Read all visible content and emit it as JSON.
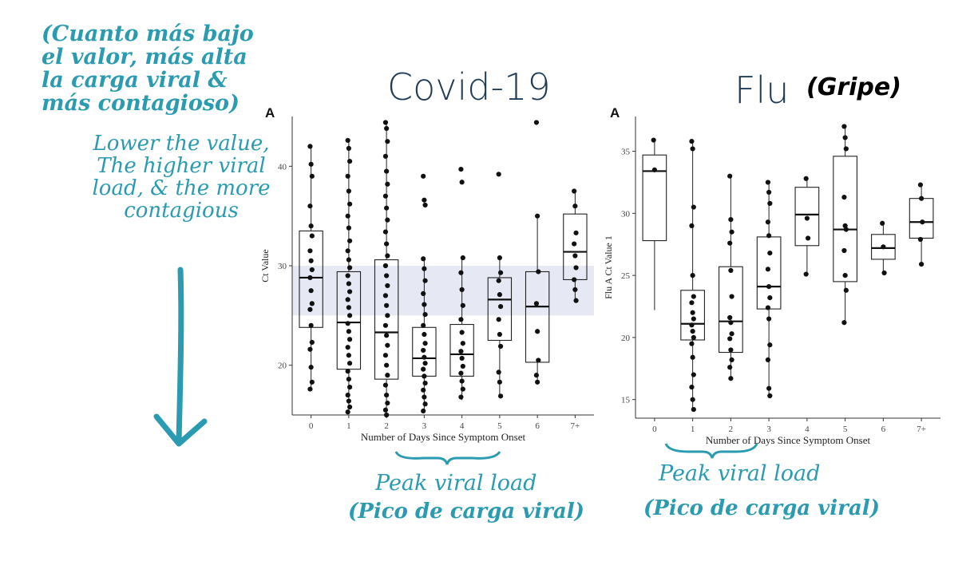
{
  "annotations": {
    "spanish_note": "(Cuanto más bajo el valor, más alta la carga viral & más contagioso)",
    "english_note": "Lower the value, The higher viral load, & the more contagious",
    "covid_title": "Covid-19",
    "flu_title": "Flu",
    "flu_title_es": "(Gripe)",
    "peak_label_en": "Peak viral load",
    "peak_label_es": "(Pico de carga viral)",
    "arrow_icon": "down-arrow-icon",
    "colors": {
      "teal": "#2a9bb0",
      "navy": "#1f3b57",
      "band": "#e6e8f4"
    }
  },
  "chart_data": [
    {
      "type": "box",
      "panel_letter": "A",
      "xlabel": "Number of Days Since Symptom Onset",
      "ylabel": "Ct Value",
      "categories": [
        "0",
        "1",
        "2",
        "3",
        "4",
        "5",
        "6",
        "7+"
      ],
      "yticks": [
        20,
        30,
        40
      ],
      "ylim": [
        15,
        45
      ],
      "highlight_band": [
        25,
        30
      ],
      "boxes": [
        {
          "q1": 23.8,
          "median": 28.8,
          "q3": 33.5,
          "min": 17.5,
          "max": 42.0
        },
        {
          "q1": 19.6,
          "median": 24.3,
          "q3": 29.4,
          "min": 15.3,
          "max": 42.6
        },
        {
          "q1": 18.6,
          "median": 23.3,
          "q3": 30.6,
          "min": 15.0,
          "max": 44.4
        },
        {
          "q1": 18.9,
          "median": 20.7,
          "q3": 23.8,
          "min": 15.4,
          "max": 30.7
        },
        {
          "q1": 18.9,
          "median": 21.1,
          "q3": 24.1,
          "min": 16.5,
          "max": 30.8
        },
        {
          "q1": 22.5,
          "median": 26.6,
          "q3": 28.8,
          "min": 16.9,
          "max": 30.8
        },
        {
          "q1": 20.3,
          "median": 25.9,
          "q3": 29.4,
          "min": 18.3,
          "max": 35.0
        },
        {
          "q1": 28.6,
          "median": 31.4,
          "q3": 35.2,
          "min": 26.5,
          "max": 37.5
        }
      ],
      "points": [
        [
          42.0,
          40.2,
          39.0,
          36.0,
          34.0,
          33.0,
          31.5,
          30.5,
          29.6,
          28.8,
          27.5,
          26.2,
          25.6,
          24.0,
          22.3,
          21.6,
          19.8,
          18.3,
          17.6
        ],
        [
          42.6,
          41.8,
          40.5,
          39.0,
          37.5,
          36.2,
          35.0,
          33.8,
          32.5,
          31.5,
          30.6,
          29.8,
          29.0,
          28.2,
          27.4,
          26.6,
          25.8,
          25.0,
          24.2,
          23.4,
          22.6,
          21.8,
          21.0,
          20.2,
          19.4,
          18.6,
          17.8,
          17.0,
          16.4,
          15.8,
          15.3
        ],
        [
          44.4,
          43.8,
          42.5,
          41.0,
          39.5,
          38.2,
          37.0,
          35.8,
          34.6,
          33.4,
          32.2,
          31.0,
          30.0,
          29.0,
          28.0,
          27.0,
          26.0,
          25.0,
          24.0,
          23.0,
          22.0,
          21.0,
          20.0,
          19.0,
          18.0,
          17.0,
          16.2,
          15.5,
          15.0
        ],
        [
          39.0,
          36.6,
          36.1,
          30.7,
          29.7,
          28.5,
          27.2,
          26.1,
          25.1,
          24.0,
          23.1,
          22.2,
          21.5,
          20.8,
          20.2,
          19.6,
          18.9,
          18.2,
          17.5,
          16.8,
          16.1,
          15.4
        ],
        [
          39.7,
          38.4,
          30.8,
          29.3,
          27.6,
          26.0,
          24.6,
          23.3,
          22.2,
          21.4,
          20.7,
          19.9,
          19.2,
          18.4,
          17.6,
          16.8
        ],
        [
          39.2,
          30.8,
          29.3,
          28.5,
          27.1,
          25.9,
          24.6,
          23.1,
          21.9,
          19.3,
          18.3,
          16.9
        ],
        [
          44.4,
          35.0,
          29.4,
          26.2,
          23.4,
          20.5,
          19.0,
          18.3
        ],
        [
          37.5,
          36.0,
          33.3,
          32.2,
          31.0,
          29.8,
          28.6,
          27.6,
          26.5
        ]
      ]
    },
    {
      "type": "box",
      "panel_letter": "A",
      "xlabel": "Number of Days Since Symptom Onset",
      "ylabel": "Flu A Ct Value 1",
      "categories": [
        "0",
        "1",
        "2",
        "3",
        "4",
        "5",
        "6",
        "7+"
      ],
      "yticks": [
        15,
        20,
        25,
        30,
        35
      ],
      "ylim": [
        13.5,
        37.8
      ],
      "boxes": [
        {
          "q1": 27.8,
          "median": 33.4,
          "q3": 34.7,
          "min": 22.2,
          "max": 35.9
        },
        {
          "q1": 19.8,
          "median": 21.1,
          "q3": 23.8,
          "min": 14.2,
          "max": 35.8
        },
        {
          "q1": 18.8,
          "median": 21.3,
          "q3": 25.7,
          "min": 16.7,
          "max": 33.0
        },
        {
          "q1": 22.3,
          "median": 24.1,
          "q3": 28.1,
          "min": 15.3,
          "max": 32.5
        },
        {
          "q1": 27.4,
          "median": 29.9,
          "q3": 32.1,
          "min": 25.1,
          "max": 32.8
        },
        {
          "q1": 24.5,
          "median": 28.7,
          "q3": 34.6,
          "min": 21.2,
          "max": 37.0
        },
        {
          "q1": 26.3,
          "median": 27.2,
          "q3": 28.3,
          "min": 25.2,
          "max": 29.2
        },
        {
          "q1": 28.0,
          "median": 29.3,
          "q3": 31.2,
          "min": 25.9,
          "max": 32.3
        }
      ],
      "points": [
        [
          35.9,
          33.5
        ],
        [
          35.8,
          35.2,
          30.5,
          29.0,
          25.0,
          23.3,
          22.8,
          22.0,
          21.5,
          21.0,
          20.5,
          20.0,
          19.5,
          18.4,
          17.0,
          16.0,
          15.0,
          14.2
        ],
        [
          33.0,
          29.5,
          28.5,
          27.6,
          25.4,
          23.3,
          21.6,
          21.2,
          20.3,
          19.9,
          19.0,
          18.2,
          17.6,
          16.7
        ],
        [
          32.5,
          31.7,
          30.8,
          29.3,
          28.2,
          26.8,
          25.5,
          24.1,
          23.2,
          22.4,
          21.5,
          19.4,
          18.2,
          15.9,
          15.3
        ],
        [
          32.8,
          29.6,
          28.0,
          25.1
        ],
        [
          37.0,
          36.1,
          35.2,
          31.3,
          29.0,
          28.7,
          27.0,
          25.0,
          23.8,
          21.2
        ],
        [
          29.2,
          27.3,
          25.2
        ],
        [
          32.3,
          31.2,
          29.3,
          27.9,
          25.9
        ]
      ]
    }
  ]
}
